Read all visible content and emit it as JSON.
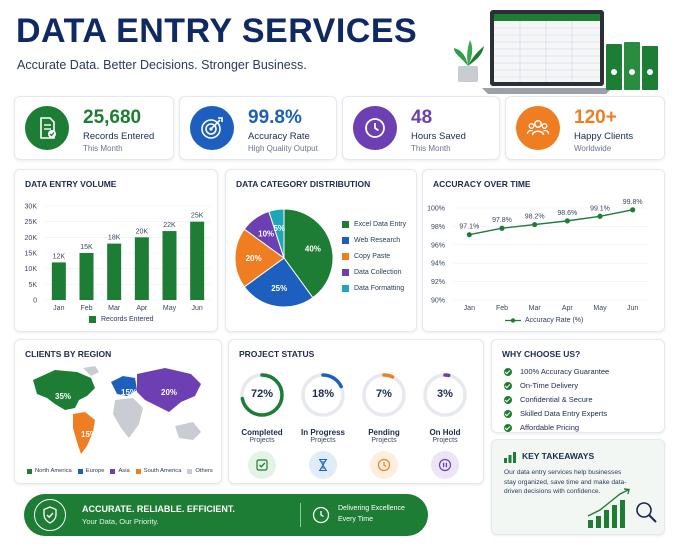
{
  "header": {
    "title": "DATA ENTRY SERVICES",
    "subtitle": "Accurate Data. Better Decisions. Stronger Business."
  },
  "kpis": [
    {
      "value": "25,680",
      "label": "Records Entered",
      "sub": "This Month",
      "color": "#1e7d34",
      "icon": "document-check-icon"
    },
    {
      "value": "99.8%",
      "label": "Accuracy Rate",
      "sub": "High Quality Output",
      "color": "#1d5fbf",
      "icon": "target-icon"
    },
    {
      "value": "48",
      "label": "Hours Saved",
      "sub": "This Month",
      "color": "#6c3fb3",
      "icon": "clock-icon"
    },
    {
      "value": "120+",
      "label": "Happy Clients",
      "sub": "Worldwide",
      "color": "#ef7d22",
      "icon": "users-icon"
    }
  ],
  "chart_data": [
    {
      "type": "bar",
      "title": "DATA ENTRY VOLUME",
      "categories": [
        "Jan",
        "Feb",
        "Mar",
        "Apr",
        "May",
        "Jun"
      ],
      "values": [
        12000,
        15000,
        18000,
        20000,
        22000,
        25000
      ],
      "data_labels": [
        "12K",
        "15K",
        "18K",
        "20K",
        "22K",
        "25K"
      ],
      "y_ticks": [
        "0",
        "5K",
        "10K",
        "15K",
        "20K",
        "25K",
        "30K"
      ],
      "ylim": [
        0,
        30000
      ],
      "series": [
        {
          "name": "Records Entered",
          "values": [
            12000,
            15000,
            18000,
            20000,
            22000,
            25000
          ]
        }
      ],
      "color": "#1e7d34"
    },
    {
      "type": "pie",
      "title": "DATA CATEGORY DISTRIBUTION",
      "labels": [
        "Excel Data Entry",
        "Web Research",
        "Copy Paste",
        "Data Collection",
        "Data Formatting"
      ],
      "values": [
        40,
        25,
        20,
        10,
        5
      ],
      "data_labels": [
        "40%",
        "25%",
        "20%",
        "10%",
        "5%"
      ],
      "colors": [
        "#1e7d34",
        "#1d5fbf",
        "#ef7d22",
        "#6c3fb3",
        "#1fa6b8"
      ]
    },
    {
      "type": "line",
      "title": "ACCURACY OVER TIME",
      "categories": [
        "Jan",
        "Feb",
        "Mar",
        "Apr",
        "May",
        "Jun"
      ],
      "values": [
        97.1,
        97.8,
        98.2,
        98.6,
        99.1,
        99.8
      ],
      "data_labels": [
        "97.1%",
        "97.8%",
        "98.2%",
        "98.6%",
        "99.1%",
        "99.8%"
      ],
      "y_ticks": [
        "90%",
        "92%",
        "94%",
        "96%",
        "98%",
        "100%"
      ],
      "ylim": [
        90,
        100
      ],
      "series": [
        {
          "name": "Accuracy Rate (%)",
          "values": [
            97.1,
            97.8,
            98.2,
            98.6,
            99.1,
            99.8
          ]
        }
      ],
      "color": "#1e7d34"
    }
  ],
  "regions": {
    "title": "CLIENTS BY REGION",
    "labels": [
      "35%",
      "15%",
      "15%",
      "20%"
    ],
    "legend": [
      "North America",
      "Europe",
      "Asia",
      "South America",
      "Others"
    ],
    "colors": [
      "#1e7d34",
      "#1d5fbf",
      "#6c3fb3",
      "#ef7d22",
      "#c9ccd3"
    ]
  },
  "project_status": {
    "title": "PROJECT STATUS",
    "items": [
      {
        "pct": 72,
        "label": "72%",
        "name": "Completed",
        "sub": "Projects",
        "color": "#1e7d34",
        "bg": "#e3f3e6",
        "icon": "check-square-icon"
      },
      {
        "pct": 18,
        "label": "18%",
        "name": "In Progress",
        "sub": "Projects",
        "color": "#1d5fbf",
        "bg": "#e1ecf9",
        "icon": "hourglass-icon"
      },
      {
        "pct": 7,
        "label": "7%",
        "name": "Pending",
        "sub": "Projects",
        "color": "#ef7d22",
        "bg": "#fdeede",
        "icon": "clock-icon"
      },
      {
        "pct": 3,
        "label": "3%",
        "name": "On Hold",
        "sub": "Projects",
        "color": "#6c3fb3",
        "bg": "#ece4f7",
        "icon": "pause-icon"
      }
    ]
  },
  "why": {
    "title": "WHY CHOOSE US?",
    "items": [
      "100% Accuracy Guarantee",
      "On-Time Delivery",
      "Confidential & Secure",
      "Skilled Data Entry Experts",
      "Affordable Pricing"
    ]
  },
  "takeaways": {
    "title": "KEY TAKEAWAYS",
    "text": "Our data entry services help businesses stay organized, save time and make data-driven decisions with confidence."
  },
  "banner": {
    "headline": "ACCURATE. RELIABLE. EFFICIENT.",
    "tagline": "Your Data, Our Priority.",
    "right_line1": "Delivering Excellence",
    "right_line2": "Every Time"
  }
}
